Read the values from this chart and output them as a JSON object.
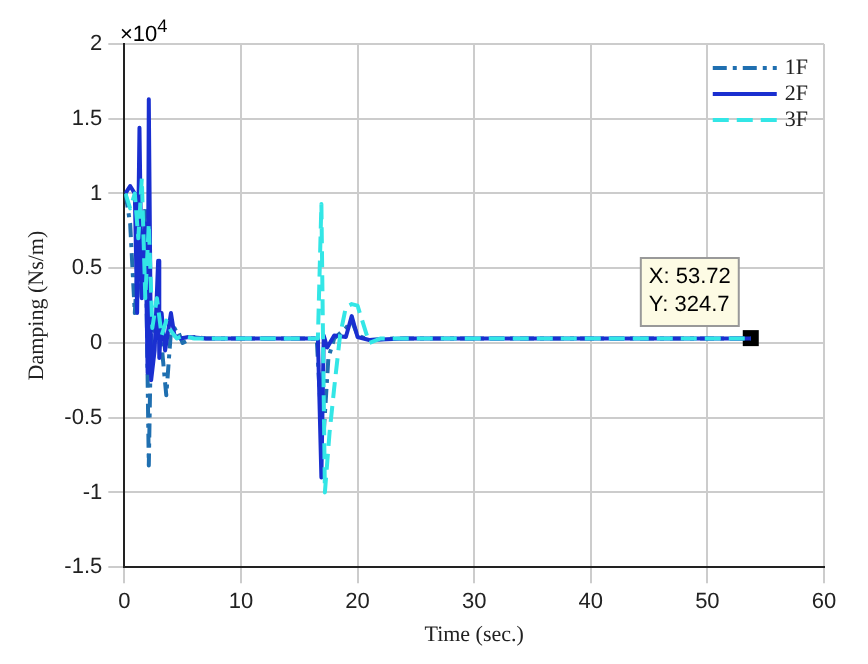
{
  "chart_data": {
    "type": "line",
    "xlabel": "Time (sec.)",
    "ylabel": "Damping (Ns/m)",
    "xlim": [
      0,
      60
    ],
    "xticks": [
      0,
      10,
      20,
      30,
      40,
      50,
      60
    ],
    "ylim": [
      -1.5,
      2
    ],
    "yticks": [
      -1.5,
      -1,
      -0.5,
      0,
      0.5,
      1,
      1.5,
      2
    ],
    "grid": true,
    "legend": "top right",
    "marker": "none",
    "annotations": [
      "×10$^{4}$",
      {
        "text": "X: 53.72\nY: 324.7",
        "x": 53.72,
        "y": 0.03247
      }
    ],
    "series": [
      {
        "name": "1F",
        "color": "#1f6fb0",
        "line_style": "dashdot",
        "x": [
          0.1,
          0.5,
          0.9,
          1.2,
          1.5,
          1.8,
          2.1,
          2.3,
          2.6,
          3.0,
          3.3,
          3.6,
          4.0,
          4.5,
          5.0,
          6.0,
          7.0,
          8.0,
          10.0,
          16.5,
          16.8,
          17.1,
          17.5,
          18.0,
          19.0,
          19.5,
          20.0,
          21.0,
          23.0,
          25.0,
          30.0,
          40.0,
          53.72
        ],
        "values": [
          1,
          0.8,
          0.2,
          0.6,
          0.3,
          0.9,
          -0.82,
          0.1,
          0.05,
          0.2,
          -0.1,
          -0.35,
          0.08,
          0.1,
          0,
          0.04,
          0.03,
          0.03,
          0.03,
          0.03,
          -0.4,
          -0.6,
          -0.1,
          0.03,
          0.1,
          0.15,
          0.05,
          0.02,
          0.03,
          0.03,
          0.03,
          0.03,
          0.03
        ]
      },
      {
        "name": "2F",
        "color": "#1a2fd0",
        "line_style": "solid",
        "x": [
          0.1,
          0.5,
          0.9,
          1.1,
          1.3,
          1.5,
          1.8,
          2.0,
          2.1,
          2.3,
          2.6,
          2.9,
          3.0,
          3.2,
          3.5,
          4.0,
          4.3,
          4.8,
          5.5,
          7.0,
          10.0,
          16.6,
          16.9,
          17.1,
          17.4,
          18.0,
          19.0,
          19.5,
          20.0,
          21.0,
          24.0,
          30.0,
          40.0,
          53.72
        ],
        "values": [
          1,
          1.05,
          1,
          0.2,
          1.44,
          0.3,
          0.8,
          -0.2,
          1.63,
          -0.25,
          -0.05,
          0.55,
          -0.1,
          0.2,
          -0.05,
          0.2,
          0.05,
          0.03,
          0.04,
          0.03,
          0.03,
          0.03,
          -0.9,
          0.05,
          -0.03,
          0.05,
          0.04,
          0.18,
          0.04,
          0.02,
          0.03,
          0.03,
          0.03,
          0.03
        ]
      },
      {
        "name": "3F",
        "color": "#33e6e6",
        "line_style": "dashed",
        "x": [
          0.1,
          0.5,
          0.9,
          1.2,
          1.5,
          1.8,
          2.1,
          2.4,
          2.8,
          3.2,
          3.6,
          4.0,
          4.5,
          5.0,
          6.0,
          8.0,
          10.0,
          16.6,
          16.9,
          17.2,
          17.6,
          18.0,
          18.5,
          19.0,
          19.5,
          20.0,
          21.0,
          22.0,
          25.0,
          30.0,
          40.0,
          53.72
        ],
        "values": [
          1,
          0.9,
          1,
          0.7,
          1.1,
          0.3,
          0.8,
          0.1,
          0.3,
          0.05,
          0.15,
          0.08,
          0.03,
          0.05,
          0.03,
          0.03,
          0.03,
          0.03,
          0.93,
          -1,
          -0.6,
          -0.3,
          0.05,
          0.24,
          0.26,
          0.25,
          0,
          0.03,
          0.03,
          0.03,
          0.03,
          0.03
        ]
      }
    ]
  }
}
